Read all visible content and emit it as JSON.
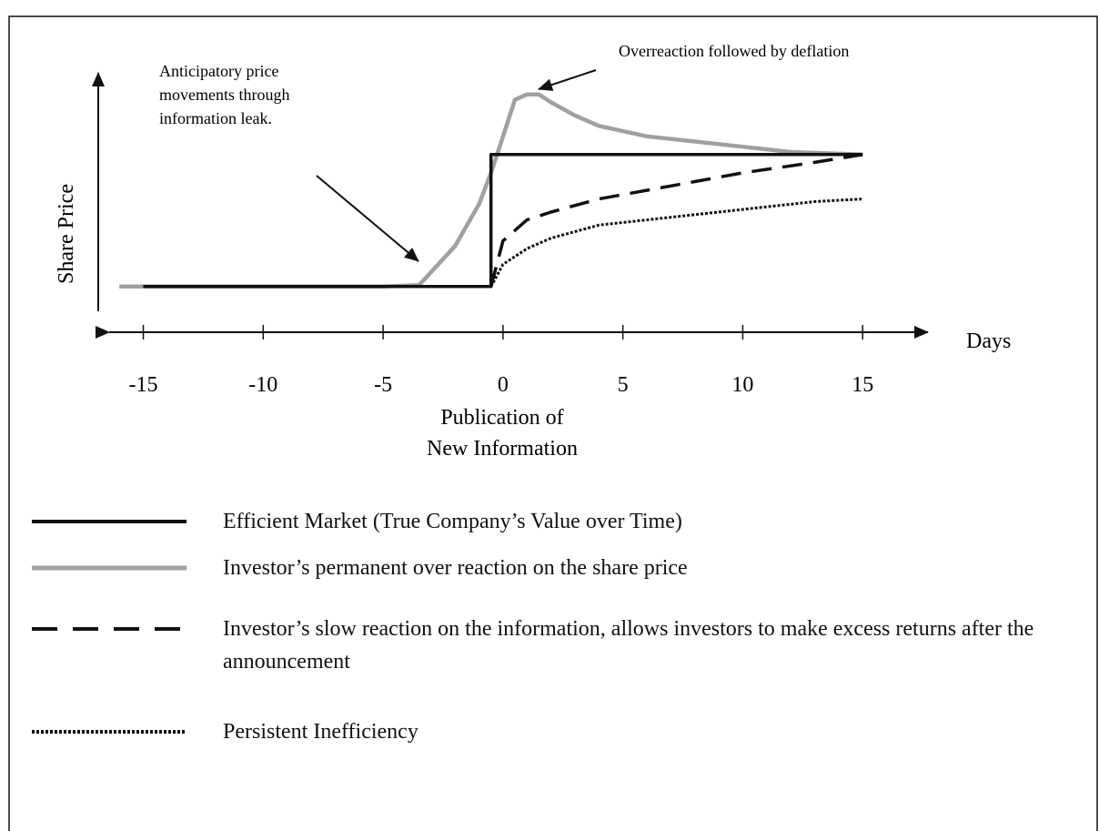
{
  "chart_data": {
    "type": "line",
    "ylabel": "Share Price",
    "xlabel": "Days",
    "x_note": [
      "Publication of",
      "New Information"
    ],
    "annotations": [
      {
        "lines": [
          "Anticipatory price",
          "movements through",
          "information leak."
        ]
      },
      {
        "lines": [
          "Overreaction followed by deflation"
        ]
      }
    ],
    "xlim": [
      -16.5,
      17.8
    ],
    "xticks": [
      -15,
      -10,
      -5,
      0,
      5,
      10,
      15
    ],
    "ylim": [
      0,
      10
    ],
    "series": [
      {
        "name": "Efficient Market (True Company’s Value over Time)",
        "color": "#111111",
        "dash": "solid",
        "x": [
          -15,
          -0.5,
          -0.5,
          15
        ],
        "values": [
          1.75,
          1.75,
          6.8,
          6.8
        ]
      },
      {
        "name": "Investor’s permanent over reaction on the share price",
        "color": "#a0a0a0",
        "dash": "solid",
        "x": [
          -16,
          -10,
          -5,
          -3.5,
          -3,
          -2,
          -1,
          -0.5,
          0,
          0.5,
          1,
          1.5,
          2,
          3,
          4,
          6,
          8,
          10,
          12,
          15
        ],
        "values": [
          1.75,
          1.75,
          1.75,
          1.8,
          2.3,
          3.3,
          4.9,
          6.1,
          7.5,
          8.9,
          9.1,
          9.1,
          8.8,
          8.3,
          7.9,
          7.5,
          7.3,
          7.1,
          6.9,
          6.8
        ]
      },
      {
        "name": "Investor’s slow reaction on the information, allows investors to make excess returns after the announcement",
        "color": "#111111",
        "dash": "dashed",
        "x": [
          -0.5,
          0,
          1,
          2,
          4,
          7,
          10,
          13,
          15
        ],
        "values": [
          1.75,
          3.5,
          4.3,
          4.6,
          5.1,
          5.6,
          6.1,
          6.5,
          6.8
        ]
      },
      {
        "name": "Persistent Inefficiency",
        "color": "#111111",
        "dash": "dotted",
        "x": [
          -0.5,
          0,
          1,
          2,
          4,
          7,
          10,
          13,
          15
        ],
        "values": [
          1.75,
          2.6,
          3.2,
          3.6,
          4.1,
          4.4,
          4.7,
          5.0,
          5.1
        ]
      }
    ]
  }
}
